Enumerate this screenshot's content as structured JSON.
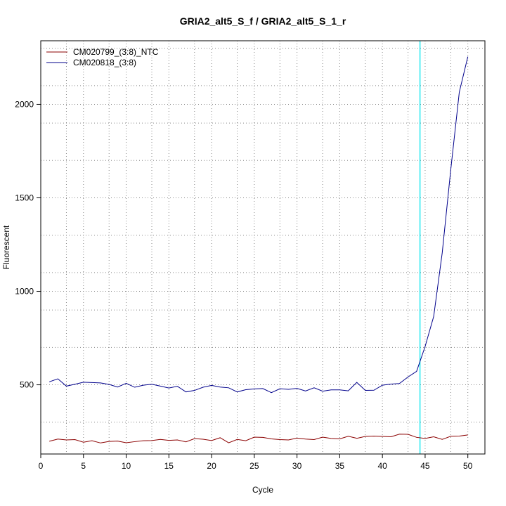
{
  "chart_data": {
    "type": "line",
    "title": "GRIA2_alt5_S_f / GRIA2_alt5_S_1_r",
    "xlabel": "Cycle",
    "ylabel": "Fluorescent",
    "xlim": [
      0,
      52
    ],
    "ylim": [
      130,
      2340
    ],
    "x_ticks": [
      0,
      5,
      10,
      15,
      20,
      25,
      30,
      35,
      40,
      45,
      50
    ],
    "y_ticks": [
      500,
      1000,
      1500,
      2000
    ],
    "x_grid": [
      3,
      8,
      13,
      18,
      23,
      28,
      33,
      38,
      43,
      48
    ],
    "y_grid": [
      300,
      700,
      900,
      1100,
      1300,
      1700,
      1900,
      2100,
      2300
    ],
    "grid": true,
    "legend_position": "top-left",
    "threshold_x": 44.4,
    "threshold_color": "#00e5ee",
    "x": [
      1,
      2,
      3,
      4,
      5,
      6,
      7,
      8,
      9,
      10,
      11,
      12,
      13,
      14,
      15,
      16,
      17,
      18,
      19,
      20,
      21,
      22,
      23,
      24,
      25,
      26,
      27,
      28,
      29,
      30,
      31,
      32,
      33,
      34,
      35,
      36,
      37,
      38,
      39,
      40,
      41,
      42,
      43,
      44,
      45,
      46,
      47,
      48,
      49,
      50
    ],
    "series": [
      {
        "name": "CM020799_(3:8)_NTC",
        "color": "#8b0000",
        "values": [
          198,
          210,
          205,
          207,
          193,
          201,
          189,
          197,
          199,
          190,
          196,
          201,
          202,
          208,
          203,
          205,
          195,
          212,
          209,
          202,
          217,
          190,
          208,
          201,
          220,
          219,
          211,
          207,
          205,
          215,
          210,
          207,
          220,
          213,
          211,
          225,
          214,
          224,
          226,
          224,
          222,
          236,
          235,
          219,
          213,
          222,
          208,
          225,
          226,
          232
        ]
      },
      {
        "name": "CM020818_(3:8)",
        "color": "#00008b",
        "values": [
          516,
          532,
          493,
          503,
          514,
          512,
          510,
          502,
          488,
          508,
          487,
          498,
          503,
          493,
          483,
          492,
          462,
          470,
          487,
          497,
          488,
          484,
          462,
          474,
          478,
          480,
          458,
          479,
          476,
          481,
          467,
          484,
          466,
          473,
          473,
          468,
          513,
          470,
          471,
          498,
          504,
          507,
          542,
          572,
          705,
          865,
          1205,
          1650,
          2065,
          2255
        ]
      }
    ]
  }
}
